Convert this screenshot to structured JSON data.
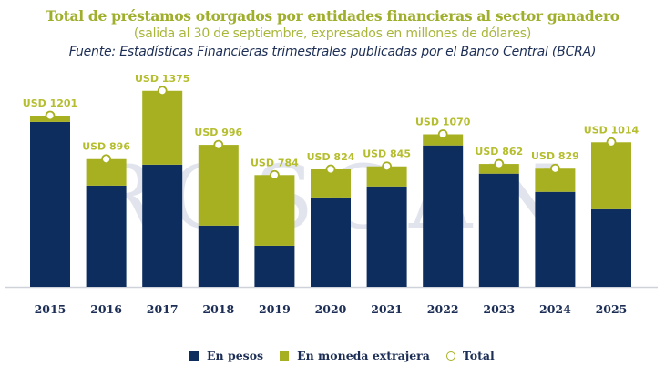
{
  "header": {
    "title": "Total de préstamos otorgados por entidades financieras al sector ganadero",
    "subtitle": "(salida al 30 de septiembre, expresados en millones de dólares)",
    "source": "Fuente: Estadísticas Financieras trimestrales publicadas por el Banco Central (BCRA)"
  },
  "watermark": "ROSGAN",
  "colors": {
    "pesos": "#0d2d5e",
    "extranjera": "#a7b020",
    "total_label": "#b5be2e",
    "axis_text": "#1c2e55"
  },
  "chart_data": {
    "type": "bar",
    "stacked": true,
    "title": "Total de préstamos otorgados por entidades financieras al sector ganadero",
    "subtitle": "(salida al 30 de septiembre, expresados en millones de dólares)",
    "xlabel": "",
    "ylabel": "",
    "ylim": [
      0,
      1500
    ],
    "grid": false,
    "legend_position": "bottom",
    "categories": [
      "2015",
      "2016",
      "2017",
      "2018",
      "2019",
      "2020",
      "2021",
      "2022",
      "2023",
      "2024",
      "2025"
    ],
    "series": [
      {
        "name": "En pesos",
        "values": [
          1157,
          710,
          857,
          429,
          288,
          627,
          704,
          992,
          794,
          666,
          544
        ]
      },
      {
        "name": "En moneda extrajera",
        "values": [
          44,
          186,
          518,
          567,
          496,
          197,
          141,
          78,
          68,
          163,
          470
        ]
      }
    ],
    "totals": [
      1201,
      896,
      1375,
      996,
      784,
      824,
      845,
      1070,
      862,
      829,
      1014
    ],
    "total_labels": [
      "USD 1201",
      "USD 896",
      "USD 1375",
      "USD 996",
      "USD 784",
      "USD 824",
      "USD 845",
      "USD 1070",
      "USD 862",
      "USD 829",
      "USD 1014"
    ]
  },
  "legend": {
    "pesos": "En pesos",
    "extranjera": "En moneda extrajera",
    "total": "Total"
  }
}
